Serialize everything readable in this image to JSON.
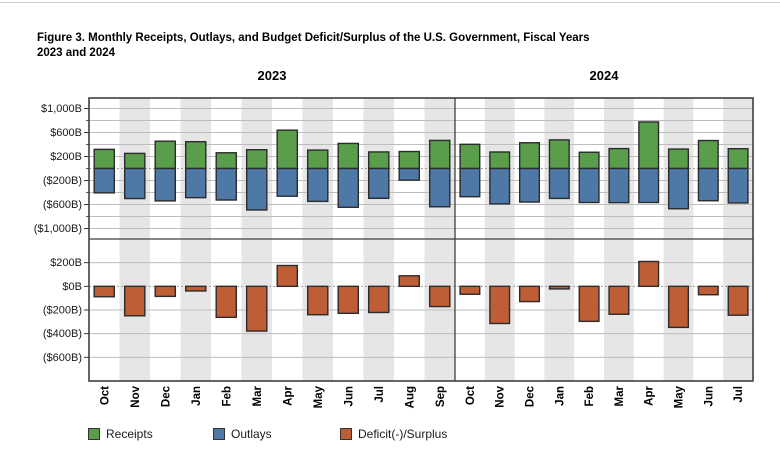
{
  "title_lines": [
    "Figure 3. Monthly Receipts, Outlays, and Budget Deficit/Surplus of the U.S. Government, Fiscal Years",
    "2023 and 2024"
  ],
  "legend": [
    {
      "label": "Receipts",
      "color": "#5a9e4b"
    },
    {
      "label": "Outlays",
      "color": "#4e79a7"
    },
    {
      "label": "Deficit(-)/Surplus",
      "color": "#bf5e36"
    }
  ],
  "colors": {
    "receipts": "#5a9e4b",
    "outlays": "#4e79a7",
    "deficit_surplus": "#bf5e36",
    "bar_outline": "#2b2b2b",
    "column_stripe": "#e6e6e6",
    "gridline": "#bdbdbd",
    "zero_line": "#9e9e9e",
    "panel_border": "#3f3f3f",
    "tick_text": "#1a1a1a"
  },
  "chart_data": {
    "type": "bar",
    "title": "Figure 3. Monthly Receipts, Outlays, and Budget Deficit/Surplus of the U.S. Government, Fiscal Years 2023 and 2024",
    "value_unit_format": "$B, negatives shown in parentheses",
    "legend_position": "bottom-left",
    "background": "alternating vertical column shading per month",
    "groups": [
      {
        "year": "2023",
        "months": [
          "Oct",
          "Nov",
          "Dec",
          "Jan",
          "Feb",
          "Mar",
          "Apr",
          "May",
          "Jun",
          "Jul",
          "Aug",
          "Sep"
        ],
        "receipts": [
          319,
          252,
          455,
          447,
          262,
          313,
          639,
          307,
          418,
          276,
          283,
          468
        ],
        "outlays": [
          406,
          501,
          540,
          486,
          525,
          691,
          462,
          548,
          646,
          497,
          194,
          638
        ],
        "deficit_surplus": [
          -88,
          -249,
          -85,
          -39,
          -262,
          -378,
          176,
          -240,
          -228,
          -221,
          89,
          -171
        ]
      },
      {
        "year": "2024",
        "months": [
          "Oct",
          "Nov",
          "Dec",
          "Jan",
          "Feb",
          "Mar",
          "Apr",
          "May",
          "Jun",
          "Jul"
        ],
        "receipts": [
          403,
          275,
          429,
          477,
          271,
          332,
          776,
          324,
          466,
          330
        ],
        "outlays": [
          470,
          589,
          559,
          499,
          567,
          569,
          567,
          671,
          537,
          574
        ],
        "deficit_surplus": [
          -67,
          -314,
          -129,
          -22,
          -296,
          -236,
          210,
          -347,
          -71,
          -244
        ]
      }
    ],
    "top_panel": {
      "series": [
        "Receipts (plotted above zero)",
        "Outlays (plotted below zero)"
      ],
      "ylim": [
        -1175,
        1175
      ],
      "gridline_step": 200,
      "yticks": [
        {
          "value": 1000,
          "label": "$1,000B"
        },
        {
          "value": 600,
          "label": "$600B"
        },
        {
          "value": 200,
          "label": "$200B"
        },
        {
          "value": -200,
          "label": "($200B)"
        },
        {
          "value": -600,
          "label": "($600B)"
        },
        {
          "value": -1000,
          "label": "($1,000B)"
        }
      ]
    },
    "bottom_panel": {
      "series": [
        "Deficit(-)/Surplus"
      ],
      "ylim": [
        -800,
        400
      ],
      "gridline_step": 200,
      "yticks": [
        {
          "value": 200,
          "label": "$200B"
        },
        {
          "value": 0,
          "label": "$0B"
        },
        {
          "value": -200,
          "label": "($200B)"
        },
        {
          "value": -400,
          "label": "($400B)"
        },
        {
          "value": -600,
          "label": "($600B)"
        }
      ]
    }
  }
}
